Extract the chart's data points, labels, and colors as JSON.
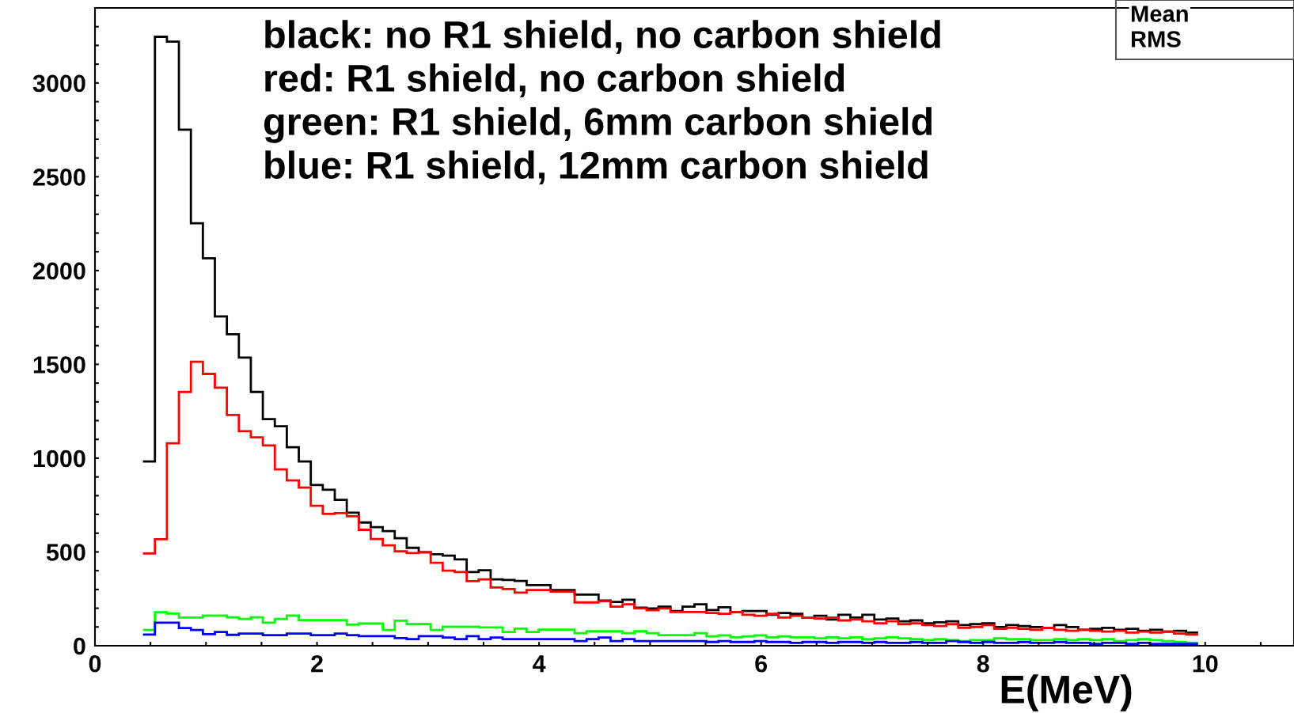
{
  "chart_data": {
    "type": "histogram",
    "xlabel": "E(MeV)",
    "annotations": [
      "black: no R1 shield, no carbon shield",
      "red: R1 shield, no carbon shield",
      "green: R1 shield, 6mm carbon shield",
      "blue: R1 shield, 12mm carbon shield",
      "Mean",
      "RMS"
    ],
    "bins": [
      0.432,
      0.54,
      0.648,
      0.756,
      0.864,
      0.972,
      1.08,
      1.188,
      1.296,
      1.404,
      1.512,
      1.62,
      1.728,
      1.836,
      1.944,
      2.052,
      2.16,
      2.268,
      2.376,
      2.484,
      2.592,
      2.7,
      2.808,
      2.916,
      3.024,
      3.132,
      3.24,
      3.348,
      3.456,
      3.564,
      3.672,
      3.78,
      3.888,
      3.996,
      4.104,
      4.212,
      4.32,
      4.428,
      4.536,
      4.644,
      4.752,
      4.86,
      4.968,
      5.076,
      5.184,
      5.292,
      5.4,
      5.508,
      5.616,
      5.724,
      5.832,
      5.94,
      6.048,
      6.156,
      6.264,
      6.372,
      6.48,
      6.588,
      6.696,
      6.804,
      6.912,
      7.02,
      7.128,
      7.236,
      7.344,
      7.452,
      7.56,
      7.668,
      7.776,
      7.884,
      7.992,
      8.1,
      8.208,
      8.316,
      8.424,
      8.532,
      8.64,
      8.748,
      8.856,
      8.964,
      9.072,
      9.18,
      9.288,
      9.396,
      9.504,
      9.612,
      9.72,
      9.828,
      9.936
    ],
    "series": [
      {
        "color": "#000000",
        "values": [
          982,
          3246,
          3220,
          2751,
          2252,
          2065,
          1755,
          1660,
          1536,
          1353,
          1208,
          1170,
          1058,
          982,
          857,
          832,
          778,
          709,
          657,
          632,
          611,
          573,
          522,
          498,
          488,
          480,
          460,
          393,
          402,
          354,
          351,
          345,
          323,
          323,
          297,
          297,
          273,
          273,
          241,
          234,
          245,
          203,
          199,
          208,
          185,
          208,
          221,
          190,
          205,
          180,
          185,
          185,
          165,
          175,
          170,
          150,
          160,
          140,
          165,
          150,
          165,
          140,
          145,
          130,
          135,
          120,
          125,
          130,
          110,
          115,
          120,
          100,
          110,
          105,
          100,
          95,
          110,
          100,
          85,
          90,
          95,
          85,
          90,
          80,
          85,
          75,
          80,
          70
        ]
      },
      {
        "color": "#ff0000",
        "values": [
          492,
          568,
          1079,
          1353,
          1514,
          1449,
          1376,
          1230,
          1144,
          1111,
          1068,
          940,
          881,
          843,
          746,
          703,
          707,
          690,
          618,
          569,
          535,
          503,
          494,
          498,
          442,
          400,
          393,
          344,
          354,
          311,
          302,
          283,
          297,
          297,
          288,
          288,
          231,
          231,
          238,
          208,
          221,
          199,
          189,
          199,
          180,
          180,
          180,
          175,
          170,
          180,
          165,
          160,
          170,
          150,
          160,
          150,
          145,
          150,
          135,
          140,
          130,
          120,
          130,
          115,
          120,
          110,
          105,
          115,
          95,
          100,
          110,
          90,
          95,
          90,
          85,
          95,
          85,
          80,
          85,
          80,
          75,
          80,
          70,
          75,
          70,
          75,
          65,
          60
        ]
      },
      {
        "color": "#00ff00",
        "values": [
          84,
          179,
          171,
          150,
          150,
          161,
          161,
          151,
          143,
          151,
          123,
          143,
          161,
          137,
          137,
          137,
          137,
          112,
          119,
          119,
          84,
          133,
          115,
          115,
          84,
          102,
          102,
          102,
          98,
          98,
          73,
          91,
          73,
          86,
          86,
          86,
          67,
          77,
          77,
          77,
          67,
          77,
          67,
          56,
          56,
          56,
          67,
          50,
          55,
          45,
          50,
          55,
          45,
          50,
          45,
          45,
          40,
          45,
          40,
          45,
          35,
          40,
          45,
          40,
          35,
          30,
          35,
          30,
          25,
          30,
          30,
          40,
          35,
          35,
          30,
          30,
          35,
          30,
          35,
          30,
          35,
          25,
          30,
          35,
          30,
          25,
          20,
          15
        ]
      },
      {
        "color": "#0000ff",
        "values": [
          60,
          123,
          123,
          94,
          84,
          62,
          73,
          58,
          65,
          65,
          56,
          56,
          65,
          65,
          56,
          56,
          65,
          56,
          51,
          51,
          51,
          41,
          35,
          51,
          51,
          44,
          35,
          51,
          35,
          44,
          35,
          35,
          35,
          35,
          35,
          35,
          25,
          35,
          44,
          25,
          35,
          25,
          25,
          25,
          25,
          25,
          25,
          20,
          25,
          20,
          20,
          25,
          20,
          20,
          15,
          20,
          20,
          15,
          20,
          20,
          15,
          20,
          15,
          15,
          20,
          15,
          15,
          25,
          20,
          15,
          20,
          15,
          15,
          20,
          15,
          15,
          20,
          15,
          15,
          10,
          15,
          15,
          10,
          15,
          10,
          10,
          10,
          10
        ]
      }
    ],
    "xlim": [
      0,
      10.8
    ],
    "ylim": [
      0,
      3400
    ],
    "xticks": [
      0,
      {
        "value": 0.5,
        "label": null
      },
      {
        "value": 1,
        "label": null
      },
      {
        "value": 1.5,
        "label": null
      },
      2,
      {
        "value": 2.5,
        "label": null
      },
      {
        "value": 3,
        "label": null
      },
      {
        "value": 3.5,
        "label": null
      },
      4,
      {
        "value": 4.5,
        "label": null
      },
      {
        "value": 5,
        "label": null
      },
      {
        "value": 5.5,
        "label": null
      },
      6,
      {
        "value": 6.5,
        "label": null
      },
      {
        "value": 7,
        "label": null
      },
      {
        "value": 7.5,
        "label": null
      },
      8,
      {
        "value": 8.5,
        "label": null
      },
      {
        "value": 9,
        "label": null
      },
      {
        "value": 9.5,
        "label": null
      },
      10,
      {
        "value": 10.5,
        "label": null
      }
    ],
    "yticks": [
      0,
      {
        "value": 100,
        "label": null
      },
      {
        "value": 200,
        "label": null
      },
      {
        "value": 300,
        "label": null
      },
      {
        "value": 400,
        "label": null
      },
      500,
      {
        "value": 600,
        "label": null
      },
      {
        "value": 700,
        "label": null
      },
      {
        "value": 800,
        "label": null
      },
      {
        "value": 900,
        "label": null
      },
      1000,
      {
        "value": 1100,
        "label": null
      },
      {
        "value": 1200,
        "label": null
      },
      {
        "value": 1300,
        "label": null
      },
      {
        "value": 1400,
        "label": null
      },
      1500,
      {
        "value": 1600,
        "label": null
      },
      {
        "value": 1700,
        "label": null
      },
      {
        "value": 1800,
        "label": null
      },
      {
        "value": 1900,
        "label": null
      },
      2000,
      {
        "value": 2100,
        "label": null
      },
      {
        "value": 2200,
        "label": null
      },
      {
        "value": 2300,
        "label": null
      },
      {
        "value": 2400,
        "label": null
      },
      2500,
      {
        "value": 2600,
        "label": null
      },
      {
        "value": 2700,
        "label": null
      },
      {
        "value": 2800,
        "label": null
      },
      {
        "value": 2900,
        "label": null
      },
      3000,
      {
        "value": 3100,
        "label": null
      },
      {
        "value": 3200,
        "label": null
      },
      {
        "value": 3300,
        "label": null
      },
      {
        "value": 3400,
        "label": null
      }
    ],
    "grid": false,
    "legend": false
  }
}
